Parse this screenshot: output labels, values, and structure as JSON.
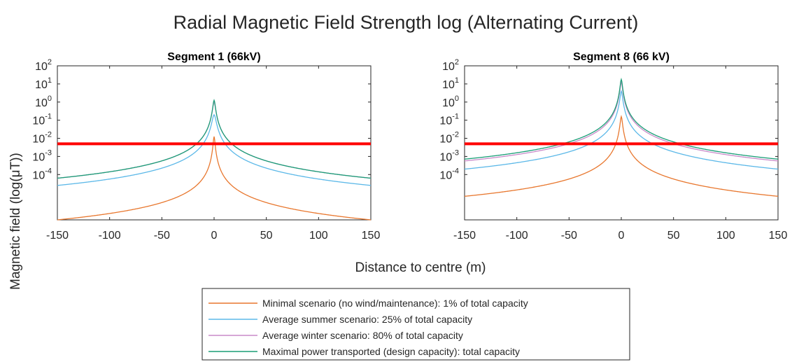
{
  "figure": {
    "title": "Radial Magnetic Field Strength log (Alternating Current)",
    "xlabel": "Distance to centre (m)",
    "ylabel": "Magnetic field (log(μT))"
  },
  "legend": {
    "placement": "bottom-center",
    "entries": [
      {
        "label": "Minimal scenario (no wind/maintenance): 1% of total capacity",
        "color": "#e8772e"
      },
      {
        "label": "Average summer scenario: 25% of total capacity",
        "color": "#5bb8e8"
      },
      {
        "label": "Average winter scenario: 80% of total capacity",
        "color": "#c98ac9"
      },
      {
        "label": "Maximal power transported (design capacity): total capacity",
        "color": "#1a9e77"
      }
    ]
  },
  "chart_data": [
    {
      "type": "line",
      "title": "Segment 1 (66kV)",
      "yscale": "log",
      "xlim": [
        -150,
        150
      ],
      "ylim_log10": [
        -6.5,
        2
      ],
      "x_ticks": [
        "-150",
        "-100",
        "-50",
        "0",
        "50",
        "100",
        "150"
      ],
      "y_ticks": [
        {
          "base": "10",
          "exp": "2"
        },
        {
          "base": "10",
          "exp": "1"
        },
        {
          "base": "10",
          "exp": "0"
        },
        {
          "base": "10",
          "exp": "-1"
        },
        {
          "base": "10",
          "exp": "-2"
        },
        {
          "base": "10",
          "exp": "-3"
        },
        {
          "base": "10",
          "exp": "-4"
        }
      ],
      "threshold": {
        "value": 0.005,
        "color": "#ff0000"
      },
      "series": [
        {
          "name": "Minimal scenario (no wind/maintenance): 1% of total capacity",
          "color": "#e8772e",
          "peak_log10": -1.9,
          "edge_log10": -6.5
        },
        {
          "name": "Average summer scenario: 25% of total capacity",
          "color": "#5bb8e8",
          "peak_log10": -0.7,
          "edge_log10": -4.6
        },
        {
          "name": "Average winter scenario: 80% of total capacity",
          "color": "#c98ac9",
          "peak_log10": 0.0,
          "edge_log10": -4.2
        },
        {
          "name": "Maximal power transported (design capacity): total capacity",
          "color": "#1a9e77",
          "peak_log10": 0.1,
          "edge_log10": -4.2
        }
      ]
    },
    {
      "type": "line",
      "title": "Segment 8 (66 kV)",
      "yscale": "log",
      "xlim": [
        -150,
        150
      ],
      "ylim_log10": [
        -6.5,
        2
      ],
      "x_ticks": [
        "-150",
        "-100",
        "-50",
        "0",
        "50",
        "100",
        "150"
      ],
      "y_ticks": [
        {
          "base": "10",
          "exp": "2"
        },
        {
          "base": "10",
          "exp": "1"
        },
        {
          "base": "10",
          "exp": "0"
        },
        {
          "base": "10",
          "exp": "-1"
        },
        {
          "base": "10",
          "exp": "-2"
        },
        {
          "base": "10",
          "exp": "-3"
        },
        {
          "base": "10",
          "exp": "-4"
        }
      ],
      "threshold": {
        "value": 0.005,
        "color": "#ff0000"
      },
      "series": [
        {
          "name": "Minimal scenario (no wind/maintenance): 1% of total capacity",
          "color": "#e8772e",
          "peak_log10": -0.8,
          "edge_log10": -5.2
        },
        {
          "name": "Average summer scenario: 25% of total capacity",
          "color": "#5bb8e8",
          "peak_log10": 0.6,
          "edge_log10": -3.7
        },
        {
          "name": "Average winter scenario: 80% of total capacity",
          "color": "#c98ac9",
          "peak_log10": 1.1,
          "edge_log10": -3.25
        },
        {
          "name": "Maximal power transported (design capacity): total capacity",
          "color": "#1a9e77",
          "peak_log10": 1.25,
          "edge_log10": -3.15
        }
      ]
    }
  ]
}
